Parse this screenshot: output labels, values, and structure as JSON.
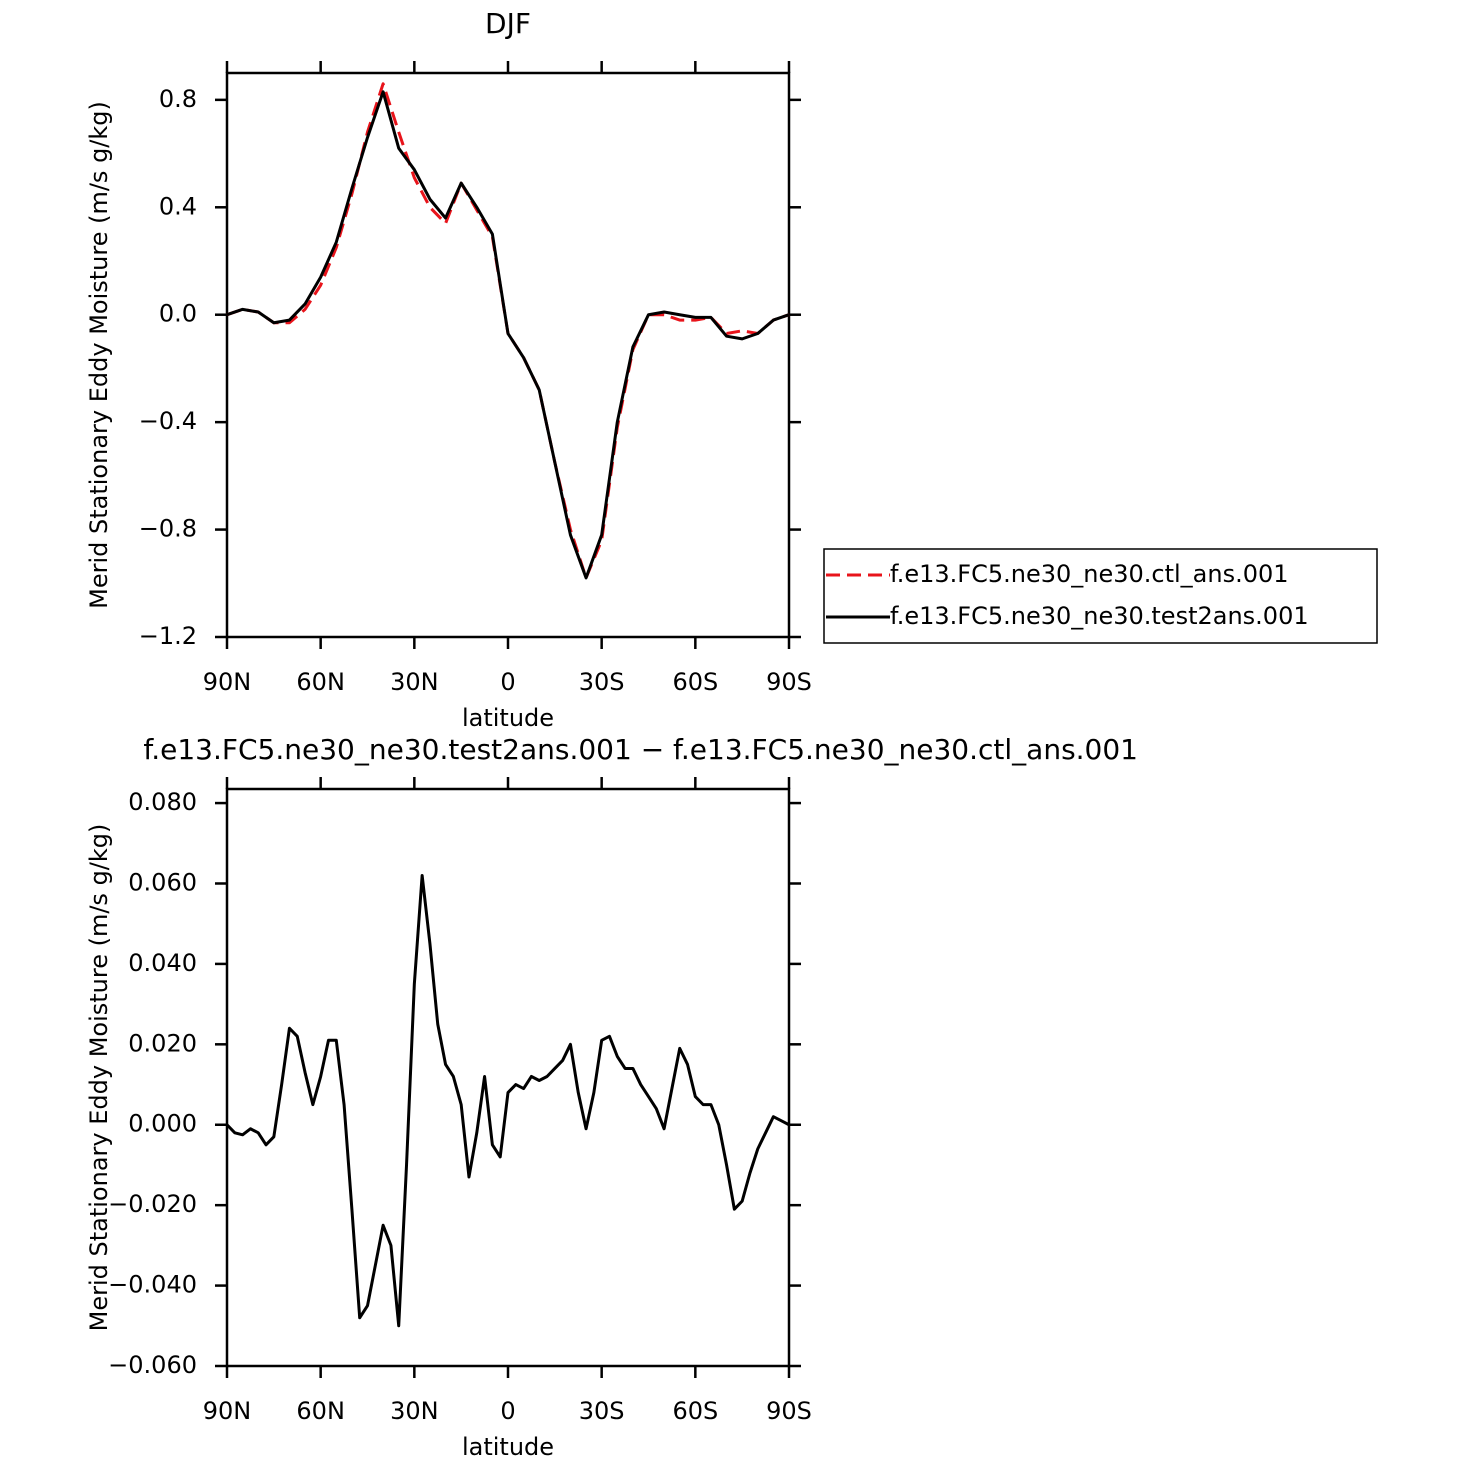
{
  "chart_data": [
    {
      "type": "line",
      "title": "DJF",
      "xlabel": "latitude",
      "ylabel": "Merid Stationary Eddy Moisture (m/s g/kg)",
      "x": [
        90,
        85,
        80,
        75,
        70,
        65,
        60,
        55,
        50,
        45,
        40,
        35,
        30,
        25,
        20,
        15,
        10,
        5,
        0,
        -5,
        -10,
        -15,
        -20,
        -25,
        -30,
        -35,
        -40,
        -45,
        -50,
        -55,
        -60,
        -65,
        -70,
        -75,
        -80,
        -85,
        -90
      ],
      "series": [
        {
          "name": "f.e13.FC5.ne30_ne30.ctl_ans.001",
          "color": "#e8141b",
          "line_style": "dashed",
          "values": [
            0,
            0.02,
            0.01,
            -0.03,
            -0.03,
            0.02,
            0.11,
            0.25,
            0.45,
            0.68,
            0.86,
            0.68,
            0.51,
            0.4,
            0.34,
            0.49,
            0.39,
            0.29,
            -0.07,
            -0.16,
            -0.28,
            -0.55,
            -0.8,
            -0.98,
            -0.84,
            -0.42,
            -0.13,
            0.0,
            0.0,
            -0.02,
            -0.02,
            -0.01,
            -0.07,
            -0.06,
            -0.07,
            -0.02,
            0
          ]
        },
        {
          "name": "f.e13.FC5.ne30_ne30.test2ans.001",
          "color": "#000000",
          "line_style": "solid",
          "values": [
            0,
            0.02,
            0.01,
            -0.03,
            -0.02,
            0.04,
            0.14,
            0.27,
            0.47,
            0.66,
            0.83,
            0.62,
            0.54,
            0.43,
            0.36,
            0.49,
            0.4,
            0.3,
            -0.07,
            -0.16,
            -0.28,
            -0.55,
            -0.82,
            -0.98,
            -0.82,
            -0.4,
            -0.12,
            0.0,
            0.01,
            0.0,
            -0.01,
            -0.01,
            -0.08,
            -0.09,
            -0.07,
            -0.02,
            0
          ]
        }
      ],
      "xlim": [
        90,
        -90
      ],
      "xticks": [
        {
          "value": 90,
          "label": "90N"
        },
        {
          "value": 60,
          "label": "60N"
        },
        {
          "value": 30,
          "label": "30N"
        },
        0,
        {
          "value": -30,
          "label": "30S"
        },
        {
          "value": -60,
          "label": "60S"
        },
        {
          "value": -90,
          "label": "90S"
        }
      ],
      "ylim": [
        -1.2,
        0.9
      ],
      "yticks": [
        {
          "value": -1.2,
          "label": "−1.2"
        },
        {
          "value": -0.8,
          "label": "−0.8"
        },
        {
          "value": -0.4,
          "label": "−0.4"
        },
        {
          "value": 0,
          "label": "0.0"
        },
        0.4,
        0.8
      ],
      "legend": "right"
    },
    {
      "type": "line",
      "title": "f.e13.FC5.ne30_ne30.test2ans.001 − f.e13.FC5.ne30_ne30.ctl_ans.001",
      "xlabel": "latitude",
      "ylabel": "Merid Stationary Eddy Moisture (m/s g/kg)",
      "x": [
        90,
        87.5,
        85,
        82.5,
        80,
        77.5,
        75,
        72.5,
        70,
        67.5,
        65,
        62.5,
        60,
        57.5,
        55,
        52.5,
        50,
        47.5,
        45,
        42.5,
        40,
        37.5,
        35,
        32.5,
        30,
        27.5,
        25,
        22.5,
        20,
        17.5,
        15,
        12.5,
        10,
        7.5,
        5,
        2.5,
        0,
        -2.5,
        -5,
        -7.5,
        -10,
        -12.5,
        -15,
        -17.5,
        -20,
        -22.5,
        -25,
        -27.5,
        -30,
        -32.5,
        -35,
        -37.5,
        -40,
        -42.5,
        -45,
        -47.5,
        -50,
        -52.5,
        -55,
        -57.5,
        -60,
        -62.5,
        -65,
        -67.5,
        -70,
        -72.5,
        -75,
        -77.5,
        -80,
        -82.5,
        -85,
        -87.5,
        -90
      ],
      "series": [
        {
          "color": "#000000",
          "line_style": "solid",
          "values": [
            0.0,
            -0.002,
            -0.0025,
            -0.001,
            -0.002,
            -0.005,
            -0.003,
            0.01,
            0.024,
            0.022,
            0.013,
            0.005,
            0.012,
            0.021,
            0.021,
            0.005,
            -0.021,
            -0.048,
            -0.045,
            -0.035,
            -0.025,
            -0.03,
            -0.05,
            -0.01,
            0.035,
            0.062,
            0.045,
            0.025,
            0.015,
            0.012,
            0.005,
            -0.013,
            -0.002,
            0.012,
            -0.005,
            -0.008,
            0.008,
            0.01,
            0.009,
            0.012,
            0.011,
            0.012,
            0.014,
            0.016,
            0.02,
            0.008,
            -0.001,
            0.008,
            0.021,
            0.022,
            0.017,
            0.014,
            0.014,
            0.01,
            0.007,
            0.004,
            -0.001,
            0.009,
            0.019,
            0.015,
            0.007,
            0.005,
            0.005,
            0.0,
            -0.01,
            -0.021,
            -0.019,
            -0.012,
            -0.006,
            -0.002,
            0.002,
            0.001,
            0.0
          ]
        }
      ],
      "xlim": [
        90,
        -90
      ],
      "xticks": [
        {
          "value": 90,
          "label": "90N"
        },
        {
          "value": 60,
          "label": "60N"
        },
        {
          "value": 30,
          "label": "30N"
        },
        0,
        {
          "value": -30,
          "label": "30S"
        },
        {
          "value": -60,
          "label": "60S"
        },
        {
          "value": -90,
          "label": "90S"
        }
      ],
      "ylim": [
        -0.06,
        0.0835
      ],
      "yticks": [
        {
          "value": -0.06,
          "label": "−0.060"
        },
        {
          "value": -0.04,
          "label": "−0.040"
        },
        {
          "value": -0.02,
          "label": "−0.020"
        },
        {
          "value": 0,
          "label": "0.000"
        },
        {
          "value": 0.02,
          "label": "0.020"
        },
        {
          "value": 0.04,
          "label": "0.040"
        },
        {
          "value": 0.06,
          "label": "0.060"
        },
        {
          "value": 0.08,
          "label": "0.080"
        }
      ]
    }
  ]
}
